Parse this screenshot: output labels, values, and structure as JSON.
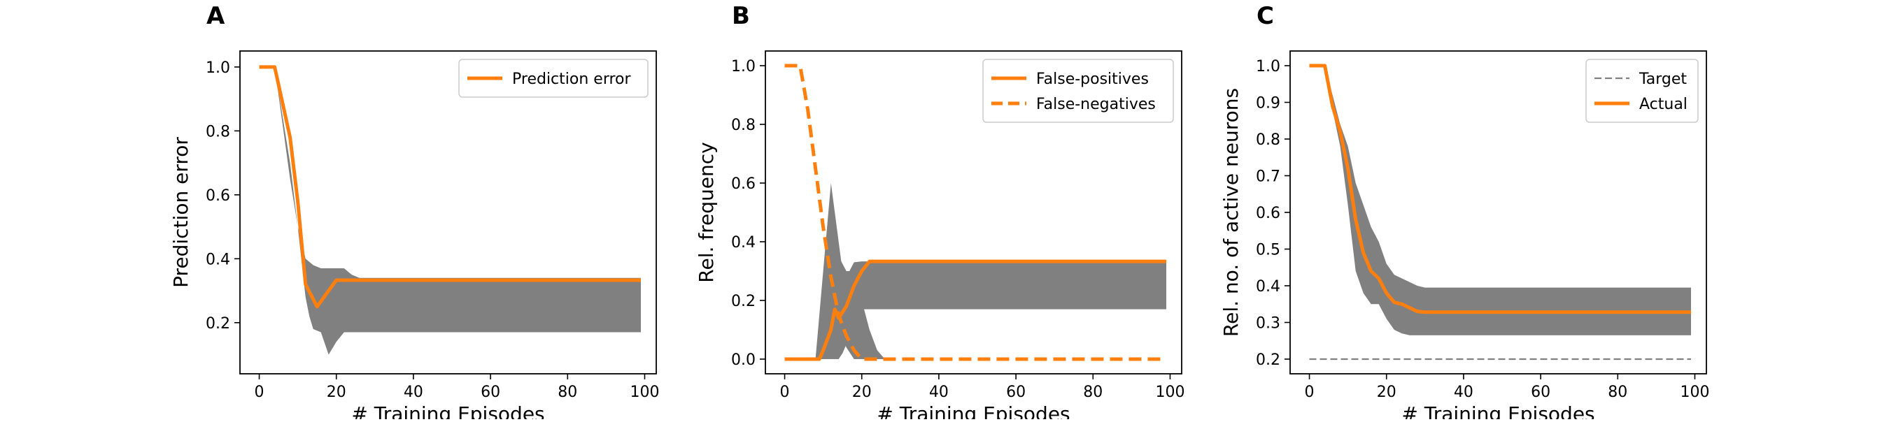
{
  "chart_data": [
    {
      "panel_label": "A",
      "type": "line",
      "xlabel": "# Training Episodes",
      "ylabel": "Prediction error",
      "xlim": [
        -5,
        103
      ],
      "ylim": [
        0.04,
        1.05
      ],
      "xticks": [
        0,
        20,
        40,
        60,
        80,
        100
      ],
      "yticks": [
        0.2,
        0.4,
        0.6,
        0.8,
        1.0
      ],
      "ytick_labels": [
        "0.2",
        "0.4",
        "0.6",
        "0.8",
        "1.0"
      ],
      "legend_position": "top-right",
      "band_color": "#808080",
      "bands": [
        {
          "x": [
            0,
            4,
            8,
            10,
            12,
            13,
            14,
            16,
            18,
            20,
            22,
            24,
            26,
            30,
            40,
            60,
            80,
            99
          ],
          "upper": [
            1.0,
            1.0,
            0.7,
            0.5,
            0.4,
            0.39,
            0.38,
            0.37,
            0.37,
            0.37,
            0.37,
            0.35,
            0.34,
            0.34,
            0.34,
            0.34,
            0.34,
            0.34
          ],
          "lower": [
            1.0,
            1.0,
            0.65,
            0.5,
            0.28,
            0.22,
            0.18,
            0.17,
            0.1,
            0.14,
            0.17,
            0.17,
            0.17,
            0.17,
            0.17,
            0.17,
            0.17,
            0.17
          ]
        }
      ],
      "series": [
        {
          "name": "Prediction error",
          "color": "#ff7f0e",
          "style": "solid",
          "x": [
            0,
            4,
            8,
            10,
            12,
            15,
            18,
            20,
            22,
            30,
            40,
            60,
            80,
            99
          ],
          "y": [
            1.0,
            1.0,
            0.78,
            0.58,
            0.32,
            0.25,
            0.3,
            0.333,
            0.333,
            0.333,
            0.333,
            0.333,
            0.333,
            0.333
          ]
        }
      ]
    },
    {
      "panel_label": "B",
      "type": "line",
      "xlabel": "# Training Episodes",
      "ylabel": "Rel. frequency",
      "xlim": [
        -5,
        103
      ],
      "ylim": [
        -0.05,
        1.05
      ],
      "xticks": [
        0,
        20,
        40,
        60,
        80,
        100
      ],
      "yticks": [
        0.0,
        0.2,
        0.4,
        0.6,
        0.8,
        1.0
      ],
      "ytick_labels": [
        "0.0",
        "0.2",
        "0.4",
        "0.6",
        "0.8",
        "1.0"
      ],
      "legend_position": "top-right",
      "band_color": "#808080",
      "bands": [
        {
          "x": [
            0,
            8,
            10,
            12,
            14,
            15,
            16,
            18,
            20,
            22,
            24,
            26,
            30,
            40,
            60,
            80,
            99
          ],
          "upper": [
            0.0,
            0.0,
            0.3,
            0.6,
            0.4,
            0.3,
            0.28,
            0.33,
            0.333,
            0.333,
            0.333,
            0.333,
            0.333,
            0.333,
            0.333,
            0.333,
            0.333
          ],
          "lower": [
            0.0,
            0.0,
            0.0,
            0.0,
            0.0,
            0.02,
            0.05,
            0.1,
            0.17,
            0.17,
            0.17,
            0.17,
            0.17,
            0.17,
            0.17,
            0.17,
            0.17
          ]
        },
        {
          "x": [
            12,
            14,
            16,
            18,
            20,
            22,
            24,
            26
          ],
          "upper": [
            0.5,
            0.35,
            0.3,
            0.3,
            0.2,
            0.1,
            0.03,
            0.0
          ],
          "lower": [
            0.2,
            0.1,
            0.04,
            0.0,
            0.0,
            0.0,
            0.0,
            0.0
          ]
        }
      ],
      "series": [
        {
          "name": "False-positives",
          "color": "#ff7f0e",
          "style": "solid",
          "x": [
            0,
            9,
            10,
            12,
            13,
            14,
            16,
            18,
            20,
            22,
            30,
            40,
            60,
            80,
            99
          ],
          "y": [
            0.0,
            0.0,
            0.03,
            0.1,
            0.17,
            0.14,
            0.18,
            0.25,
            0.3,
            0.333,
            0.333,
            0.333,
            0.333,
            0.333,
            0.333
          ]
        },
        {
          "name": "False-negatives",
          "color": "#ff7f0e",
          "style": "dashed",
          "x": [
            0,
            4,
            6,
            8,
            10,
            12,
            14,
            16,
            18,
            20,
            22,
            30,
            40,
            60,
            80,
            99
          ],
          "y": [
            1.0,
            1.0,
            0.85,
            0.65,
            0.45,
            0.28,
            0.15,
            0.08,
            0.03,
            0.0,
            0.0,
            0.0,
            0.0,
            0.0,
            0.0,
            0.0
          ]
        }
      ]
    },
    {
      "panel_label": "C",
      "type": "line",
      "xlabel": "# Training Episodes",
      "ylabel": "Rel. no. of active neurons",
      "xlim": [
        -5,
        103
      ],
      "ylim": [
        0.16,
        1.04
      ],
      "xticks": [
        0,
        20,
        40,
        60,
        80,
        100
      ],
      "yticks": [
        0.2,
        0.3,
        0.4,
        0.5,
        0.6,
        0.7,
        0.8,
        0.9,
        1.0
      ],
      "ytick_labels": [
        "0.2",
        "0.3",
        "0.4",
        "0.5",
        "0.6",
        "0.7",
        "0.8",
        "0.9",
        "1.0"
      ],
      "legend_position": "top-right",
      "band_color": "#808080",
      "bands": [
        {
          "x": [
            0,
            4,
            6,
            8,
            10,
            12,
            14,
            16,
            18,
            20,
            22,
            24,
            26,
            28,
            30,
            40,
            60,
            80,
            99
          ],
          "upper": [
            1.0,
            1.0,
            0.92,
            0.84,
            0.78,
            0.68,
            0.62,
            0.56,
            0.52,
            0.46,
            0.43,
            0.42,
            0.41,
            0.4,
            0.395,
            0.395,
            0.395,
            0.395,
            0.395
          ],
          "lower": [
            1.0,
            1.0,
            0.88,
            0.78,
            0.62,
            0.44,
            0.38,
            0.35,
            0.35,
            0.31,
            0.28,
            0.27,
            0.265,
            0.265,
            0.265,
            0.265,
            0.265,
            0.265,
            0.265
          ]
        }
      ],
      "series": [
        {
          "name": "Target",
          "color": "#808080",
          "style": "dashed-thin",
          "x": [
            0,
            99
          ],
          "y": [
            0.2,
            0.2
          ]
        },
        {
          "name": "Actual",
          "color": "#ff7f0e",
          "style": "solid",
          "x": [
            0,
            4,
            6,
            8,
            10,
            12,
            14,
            16,
            18,
            20,
            22,
            24,
            26,
            28,
            30,
            40,
            60,
            80,
            99
          ],
          "y": [
            1.0,
            1.0,
            0.89,
            0.82,
            0.72,
            0.58,
            0.49,
            0.44,
            0.42,
            0.38,
            0.355,
            0.35,
            0.34,
            0.33,
            0.328,
            0.328,
            0.328,
            0.328,
            0.328
          ]
        }
      ]
    }
  ]
}
